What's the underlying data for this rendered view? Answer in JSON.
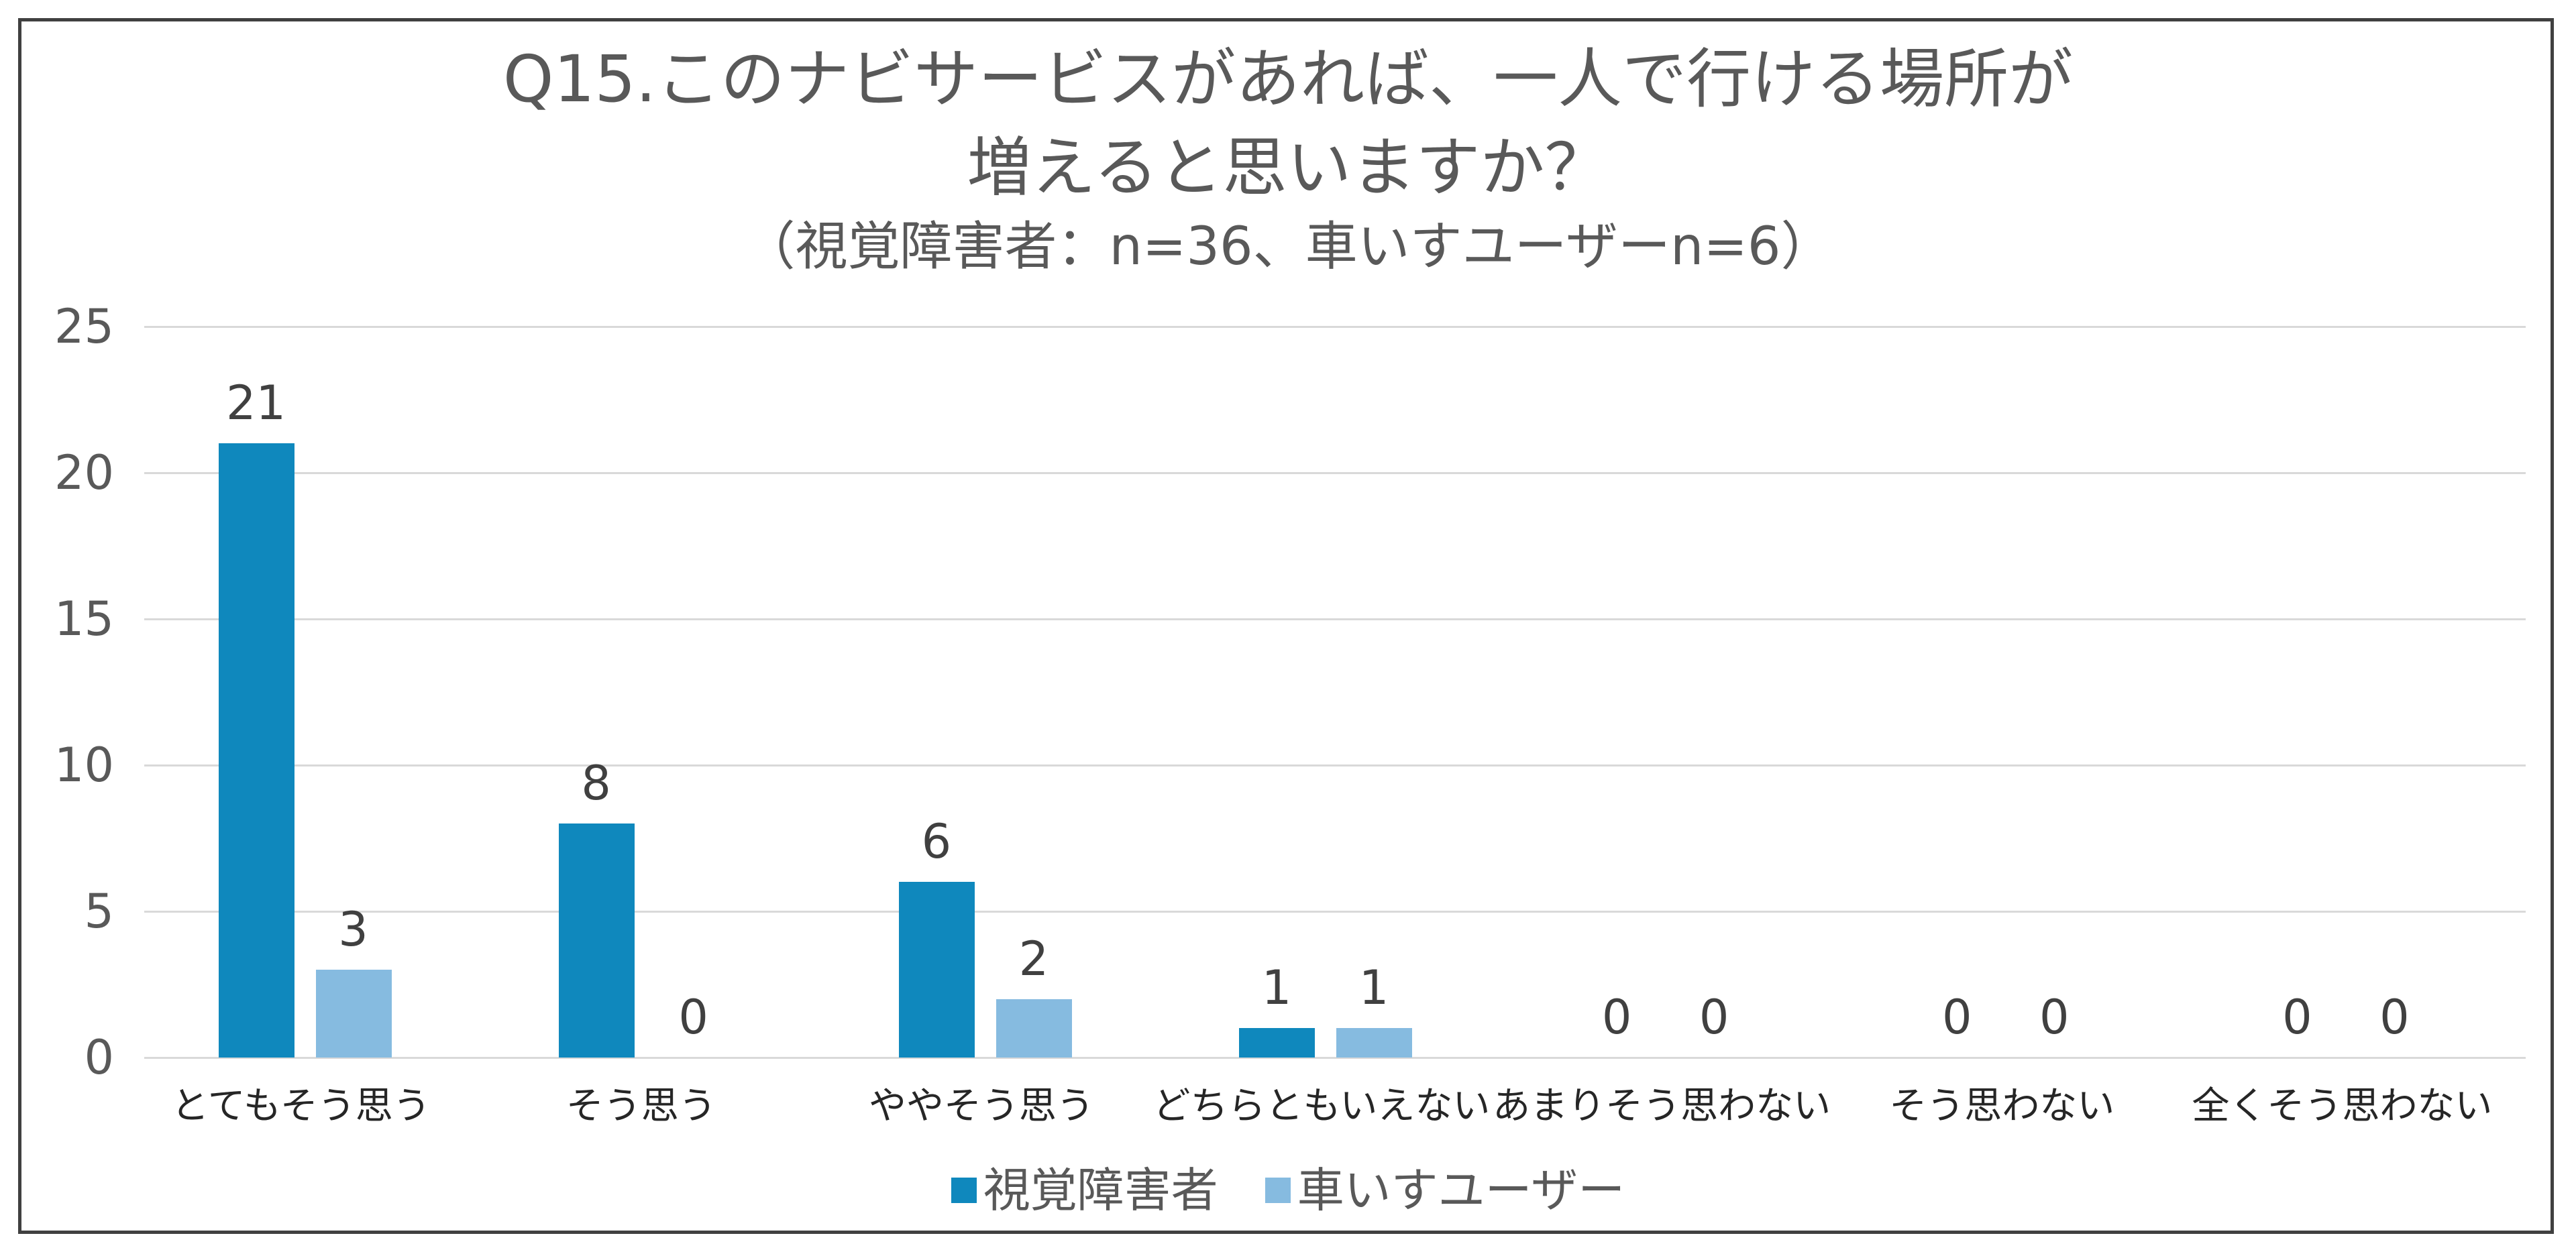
{
  "title": {
    "line1": "Q15.このナビサービスがあれば、一人で行ける場所が",
    "line2": "増えると思いますか？",
    "subtitle": "（視覚障害者：n=36、車いすユーザーn=6）"
  },
  "y_ticks": [
    "25",
    "20",
    "15",
    "10",
    "5",
    "0"
  ],
  "legend": [
    {
      "label": "視覚障害者",
      "color": "#0f88bd"
    },
    {
      "label": "車いすユーザー",
      "color": "#86bbe0"
    }
  ],
  "categories": [
    "とてもそう思う",
    "そう思う",
    "ややそう思う",
    "どちらともいえない",
    "あまりそう思わない",
    "そう思わない",
    "全くそう思わない"
  ],
  "values": {
    "s0": [
      "21",
      "8",
      "6",
      "1",
      "0",
      "0",
      "0"
    ],
    "s1": [
      "3",
      "0",
      "2",
      "1",
      "0",
      "0",
      "0"
    ]
  },
  "chart_data": {
    "type": "bar",
    "title": "Q15.このナビサービスがあれば、一人で行ける場所が増えると思いますか？",
    "subtitle": "（視覚障害者：n=36、車いすユーザーn=6）",
    "categories": [
      "とてもそう思う",
      "そう思う",
      "ややそう思う",
      "どちらともいえない",
      "あまりそう思わない",
      "そう思わない",
      "全くそう思わない"
    ],
    "series": [
      {
        "name": "視覚障害者",
        "values": [
          21,
          8,
          6,
          1,
          0,
          0,
          0
        ],
        "color": "#0f88bd"
      },
      {
        "name": "車いすユーザー",
        "values": [
          3,
          0,
          2,
          1,
          0,
          0,
          0
        ],
        "color": "#86bbe0"
      }
    ],
    "xlabel": "",
    "ylabel": "",
    "ylim": [
      0,
      25
    ],
    "yticks": [
      0,
      5,
      10,
      15,
      20,
      25
    ],
    "grid": true,
    "legend_position": "bottom",
    "data_labels": true
  }
}
